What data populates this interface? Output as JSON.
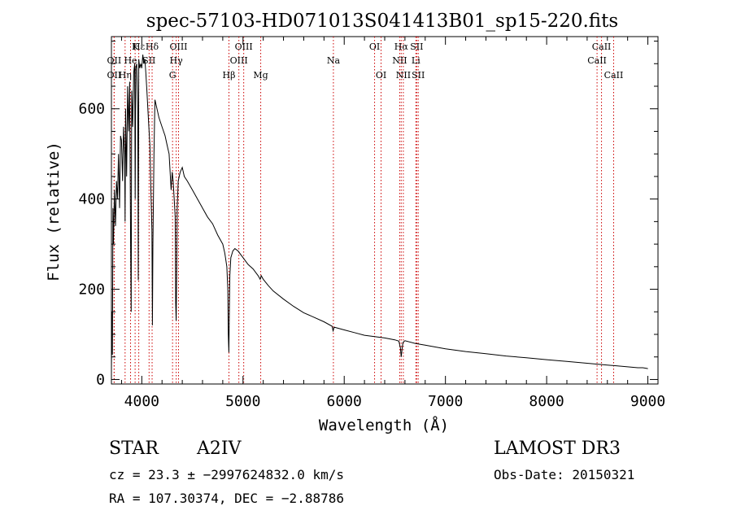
{
  "chart_data": {
    "type": "line",
    "title": "spec-57103-HD071013S041413B01_sp15-220.fits",
    "xlabel": "Wavelength (Å)",
    "ylabel": "Flux (relative)",
    "xlim": [
      3700,
      9100
    ],
    "ylim": [
      -10,
      760
    ],
    "x_ticks": [
      4000,
      5000,
      6000,
      7000,
      8000,
      9000
    ],
    "y_ticks": [
      0,
      200,
      400,
      600
    ],
    "series": [
      {
        "name": "spectrum",
        "x": [
          3700,
          3705,
          3710,
          3715,
          3720,
          3730,
          3740,
          3750,
          3760,
          3770,
          3780,
          3790,
          3800,
          3810,
          3820,
          3830,
          3835,
          3840,
          3850,
          3860,
          3870,
          3880,
          3890,
          3895,
          3900,
          3910,
          3920,
          3930,
          3935,
          3940,
          3950,
          3960,
          3965,
          3970,
          3980,
          3990,
          4000,
          4010,
          4020,
          4030,
          4040,
          4050,
          4060,
          4070,
          4080,
          4090,
          4100,
          4105,
          4110,
          4120,
          4130,
          4150,
          4170,
          4200,
          4230,
          4250,
          4270,
          4290,
          4300,
          4310,
          4320,
          4330,
          4335,
          4340,
          4345,
          4350,
          4360,
          4380,
          4400,
          4420,
          4450,
          4500,
          4550,
          4600,
          4650,
          4700,
          4750,
          4800,
          4820,
          4840,
          4850,
          4855,
          4860,
          4863,
          4866,
          4870,
          4880,
          4900,
          4920,
          4950,
          5000,
          5050,
          5100,
          5150,
          5170,
          5180,
          5200,
          5250,
          5300,
          5400,
          5500,
          5600,
          5700,
          5800,
          5880,
          5890,
          5895,
          5900,
          6000,
          6100,
          6200,
          6300,
          6400,
          6500,
          6540,
          6555,
          6563,
          6570,
          6580,
          6600,
          6700,
          6800,
          6900,
          7000,
          7200,
          7400,
          7600,
          7800,
          8000,
          8200,
          8400,
          8500,
          8600,
          8700,
          8800,
          8900,
          8950,
          8980,
          9000
        ],
        "values": [
          20,
          150,
          55,
          380,
          300,
          420,
          340,
          440,
          400,
          500,
          380,
          540,
          530,
          440,
          560,
          500,
          350,
          600,
          450,
          650,
          550,
          660,
          300,
          150,
          640,
          560,
          680,
          700,
          400,
          690,
          700,
          600,
          220,
          710,
          690,
          700,
          690,
          720,
          700,
          710,
          680,
          640,
          600,
          560,
          520,
          420,
          330,
          120,
          300,
          500,
          620,
          600,
          580,
          560,
          540,
          520,
          500,
          420,
          460,
          440,
          400,
          360,
          170,
          130,
          240,
          380,
          440,
          460,
          470,
          450,
          440,
          420,
          400,
          380,
          360,
          345,
          320,
          300,
          280,
          250,
          200,
          100,
          60,
          110,
          170,
          230,
          270,
          285,
          290,
          285,
          270,
          255,
          245,
          230,
          222,
          230,
          222,
          208,
          196,
          178,
          162,
          148,
          138,
          128,
          118,
          108,
          112,
          116,
          110,
          104,
          98,
          95,
          92,
          88,
          85,
          70,
          50,
          65,
          82,
          86,
          80,
          76,
          72,
          68,
          62,
          57,
          52,
          48,
          44,
          40,
          36,
          34,
          32,
          30,
          28,
          26,
          26,
          25,
          24
        ]
      }
    ],
    "lines": [
      {
        "label": "Hε",
        "x": 3970,
        "row": 1
      },
      {
        "label": "K",
        "x": 3934,
        "row": 1
      },
      {
        "label": "Hδ",
        "x": 4102,
        "row": 1
      },
      {
        "label": "OIII",
        "x": 4363,
        "row": 1
      },
      {
        "label": "OIII",
        "x": 5007,
        "row": 1
      },
      {
        "label": "OI",
        "x": 6300,
        "row": 1
      },
      {
        "label": "Hα",
        "x": 6563,
        "row": 1
      },
      {
        "label": "SII",
        "x": 6716,
        "row": 1
      },
      {
        "label": "CaII",
        "x": 8542,
        "row": 1
      },
      {
        "label": "OII",
        "x": 3727,
        "row": 2
      },
      {
        "label": "He",
        "x": 3889,
        "row": 2
      },
      {
        "label": "SII",
        "x": 4072,
        "row": 2
      },
      {
        "label": "Hγ",
        "x": 4340,
        "row": 2
      },
      {
        "label": "OIII",
        "x": 4959,
        "row": 2
      },
      {
        "label": "Na",
        "x": 5893,
        "row": 2
      },
      {
        "label": "NII",
        "x": 6548,
        "row": 2
      },
      {
        "label": "Li",
        "x": 6708,
        "row": 2
      },
      {
        "label": "CaII",
        "x": 8498,
        "row": 2
      },
      {
        "label": "OII",
        "x": 3727,
        "row": 3
      },
      {
        "label": "Hη",
        "x": 3835,
        "row": 3
      },
      {
        "label": "G",
        "x": 4304,
        "row": 3
      },
      {
        "label": "Hβ",
        "x": 4861,
        "row": 3
      },
      {
        "label": "Mg",
        "x": 5175,
        "row": 3
      },
      {
        "label": "OI",
        "x": 6364,
        "row": 3
      },
      {
        "label": "NII",
        "x": 6584,
        "row": 3
      },
      {
        "label": "SII",
        "x": 6731,
        "row": 3
      },
      {
        "label": "CaII",
        "x": 8662,
        "row": 3
      }
    ],
    "line_color": "#cc0000"
  },
  "info": {
    "object_class": "STAR",
    "subclass": "A2IV",
    "survey": "LAMOST DR3",
    "cz": "cz = 23.3 ± −2997624832.0 km/s",
    "obs_date": "Obs-Date: 20150321",
    "coords": "RA = 107.30374, DEC =  −2.88786"
  }
}
